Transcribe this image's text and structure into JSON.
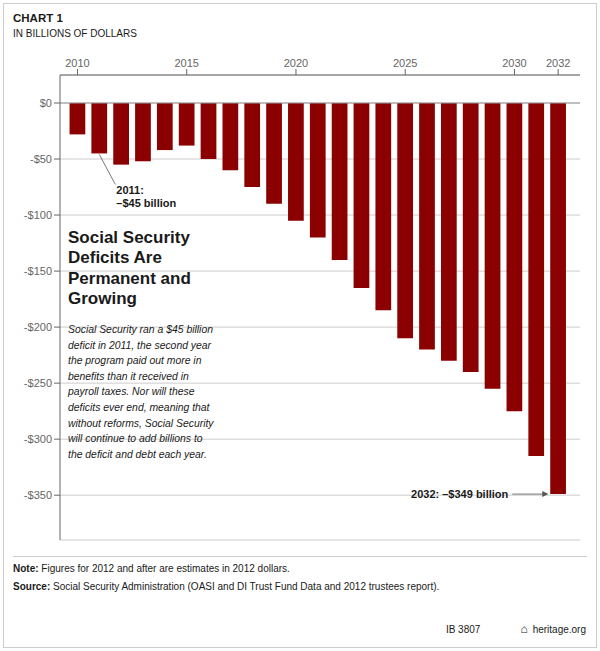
{
  "chart_data": {
    "type": "bar",
    "title": "Social Security\nDeficits Are\nPermanent and\nGrowing",
    "chart_label": "CHART 1",
    "subtitle": "IN BILLIONS OF DOLLARS",
    "body": "Social Security ran a $45 billion\ndeficit in 2011, the second year\nthe program paid out more in\nbenefits than it received in\npayroll taxes. Nor will these\ndeficits ever end, meaning that\nwithout reforms, Social Security\nwill continue to add billions to\nthe deficit and debt each year.",
    "x": [
      2010,
      2011,
      2012,
      2013,
      2014,
      2015,
      2016,
      2017,
      2018,
      2019,
      2020,
      2021,
      2022,
      2023,
      2024,
      2025,
      2026,
      2027,
      2028,
      2029,
      2030,
      2031,
      2032
    ],
    "values": [
      -28,
      -45,
      -55,
      -52,
      -42,
      -38,
      -50,
      -60,
      -75,
      -90,
      -105,
      -120,
      -140,
      -165,
      -185,
      -210,
      -220,
      -230,
      -240,
      -255,
      -275,
      -315,
      -349
    ],
    "color": "#8B0000",
    "xlim": [
      2009.2,
      2033.0
    ],
    "xticks": [
      2010,
      2015,
      2020,
      2025,
      2030,
      2032
    ],
    "ylim": [
      -390,
      25
    ],
    "yticks": [
      {
        "value": 0,
        "label": "$0"
      },
      {
        "value": -50,
        "label": "-$50"
      },
      {
        "value": -100,
        "label": "-$100"
      },
      {
        "value": -150,
        "label": "-$150"
      },
      {
        "value": -200,
        "label": "-$200"
      },
      {
        "value": -250,
        "label": "-$250"
      },
      {
        "value": -300,
        "label": "-$300"
      },
      {
        "value": -350,
        "label": "-$350"
      }
    ],
    "grid": true,
    "annotations": [
      {
        "x": 2011,
        "y": -45,
        "text": "2011:\n–$45 billion"
      },
      {
        "x": 2032,
        "y": -349,
        "text": "2032: –$349 billion"
      }
    ],
    "note": [
      "Note:",
      "Figures for 2012 and after are estimates in 2012 dollars."
    ],
    "source": [
      "Source:",
      "Social Security Administration (OASI and DI Trust Fund Data and 2012 trustees report)."
    ],
    "footer": [
      "IB 3807",
      "⌂",
      "heritage.org"
    ]
  }
}
